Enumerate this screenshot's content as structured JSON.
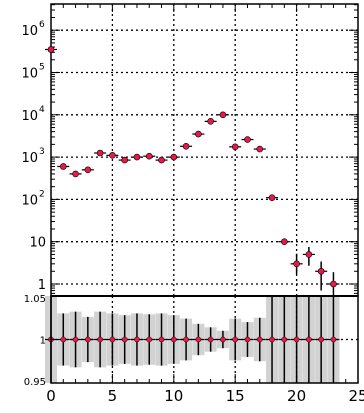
{
  "chart_data": [
    {
      "type": "scatter",
      "yscale": "log",
      "xlim": [
        0,
        25
      ],
      "ylim": [
        0.5,
        2000000
      ],
      "grid": true,
      "y_ticks": [
        {
          "value": 1000000,
          "base": "10",
          "exp": "6"
        },
        {
          "value": 100000,
          "base": "10",
          "exp": "5"
        },
        {
          "value": 10000,
          "base": "10",
          "exp": "4"
        },
        {
          "value": 1000,
          "base": "10",
          "exp": "3"
        },
        {
          "value": 100,
          "base": "10",
          "exp": "2"
        },
        {
          "value": 10,
          "base": "10",
          "exp": ""
        },
        {
          "value": 1,
          "base": "1",
          "exp": ""
        }
      ],
      "series": [
        {
          "x": [
            0,
            1,
            2,
            3,
            4,
            5,
            6,
            7,
            8,
            9,
            10,
            11,
            12,
            13,
            14,
            15,
            16,
            17,
            18,
            19,
            20,
            21,
            22,
            23
          ],
          "y": [
            350000,
            600,
            400,
            500,
            1250,
            1100,
            850,
            1000,
            1050,
            850,
            1000,
            1800,
            3500,
            7000,
            10000,
            1750,
            2600,
            1550,
            110,
            10,
            3,
            5,
            2,
            1
          ],
          "err_low": [
            0,
            0,
            0,
            0,
            0,
            0,
            0,
            0,
            0,
            0,
            0,
            0,
            0,
            0,
            0,
            0,
            0,
            0,
            0,
            1,
            1.3,
            2.3,
            1.3,
            0.55
          ],
          "err_high": [
            0,
            0,
            0,
            0,
            0,
            0,
            0,
            0,
            0,
            0,
            0,
            0,
            0,
            0,
            0,
            0,
            0,
            0,
            0,
            1.1,
            2.2,
            2.5,
            1.4,
            0.9
          ]
        }
      ],
      "marker_color": "#e8194a"
    },
    {
      "type": "scatter",
      "xlim": [
        0,
        25
      ],
      "ylim": [
        0.95,
        1.05
      ],
      "grid": true,
      "x_ticks": [
        "0",
        "5",
        "10",
        "15",
        "20",
        "25"
      ],
      "y_ticks": [
        "1.05",
        "1",
        "0.95"
      ],
      "x": [
        0,
        1,
        2,
        3,
        4,
        5,
        6,
        7,
        8,
        9,
        10,
        11,
        12,
        13,
        14,
        15,
        16,
        17,
        18,
        19,
        20,
        21,
        22,
        23
      ],
      "y": [
        1,
        1,
        1,
        1,
        1,
        1,
        1,
        1,
        1,
        1,
        1,
        1,
        1,
        1,
        1,
        1,
        1,
        1,
        1,
        1,
        1,
        1,
        1,
        1
      ],
      "band_halfwidth": [
        0.05,
        0.03,
        0.032,
        0.026,
        0.032,
        0.03,
        0.028,
        0.03,
        0.029,
        0.03,
        0.028,
        0.024,
        0.018,
        0.014,
        0.01,
        0.024,
        0.02,
        0.025,
        0.05,
        0.05,
        0.05,
        0.05,
        0.05,
        0.05
      ],
      "marker_color": "#e8194a",
      "band_color": "#d2d2d2"
    }
  ]
}
